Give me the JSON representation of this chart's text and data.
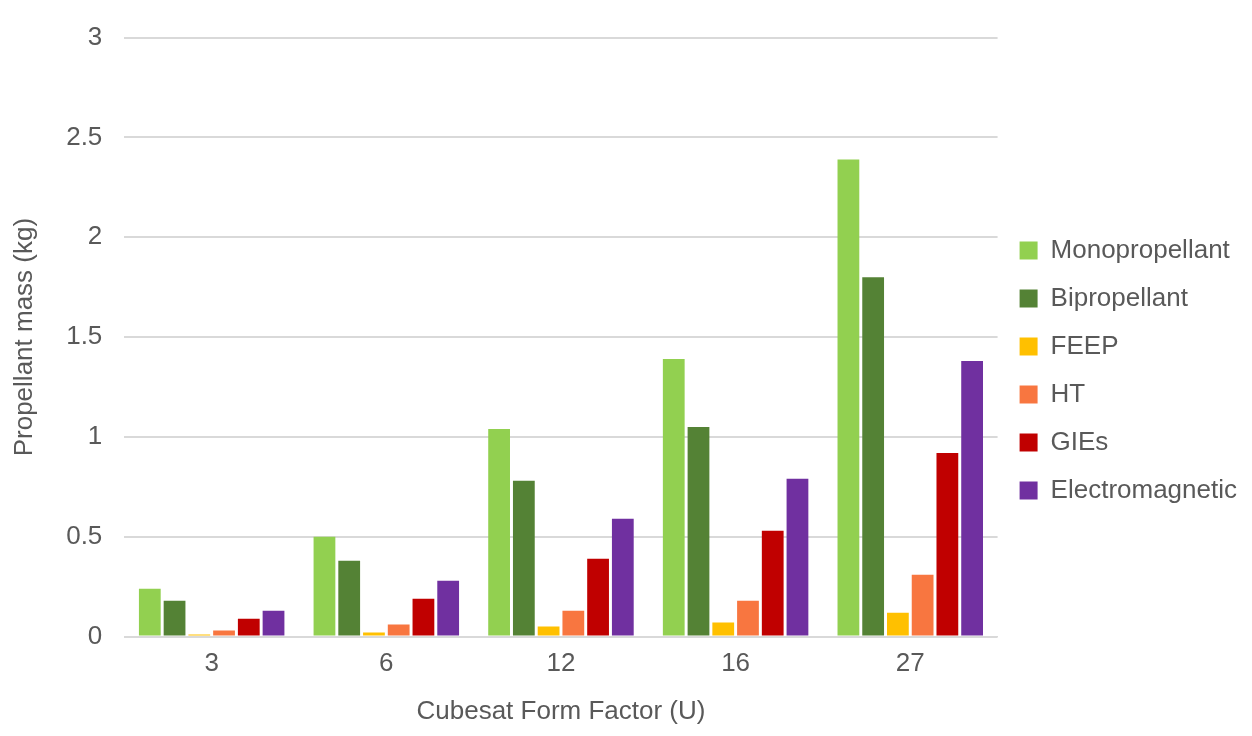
{
  "chart_data": {
    "type": "bar",
    "xlabel": "Cubesat Form Factor (U)",
    "ylabel": "Propellant mass (kg)",
    "categories": [
      "3",
      "6",
      "12",
      "16",
      "27"
    ],
    "series": [
      {
        "name": "Monopropellant",
        "color": "#92d050",
        "values": [
          0.24,
          0.5,
          1.04,
          1.39,
          2.39
        ]
      },
      {
        "name": "Bipropellant",
        "color": "#548235",
        "values": [
          0.18,
          0.38,
          0.78,
          1.05,
          1.8
        ]
      },
      {
        "name": "FEEP",
        "color": "#ffc000",
        "values": [
          0.01,
          0.02,
          0.05,
          0.07,
          0.12
        ]
      },
      {
        "name": "HT",
        "color": "#f87640",
        "values": [
          0.03,
          0.06,
          0.13,
          0.18,
          0.31
        ]
      },
      {
        "name": "GIEs",
        "color": "#c00000",
        "values": [
          0.09,
          0.19,
          0.39,
          0.53,
          0.92
        ]
      },
      {
        "name": "Electromagnetic",
        "color": "#7030a0",
        "values": [
          0.13,
          0.28,
          0.59,
          0.79,
          1.38
        ]
      }
    ],
    "ylim": [
      0,
      3
    ],
    "yticks": [
      0,
      0.5,
      1,
      1.5,
      2,
      2.5,
      3
    ],
    "grid": "y",
    "legend": "right"
  }
}
